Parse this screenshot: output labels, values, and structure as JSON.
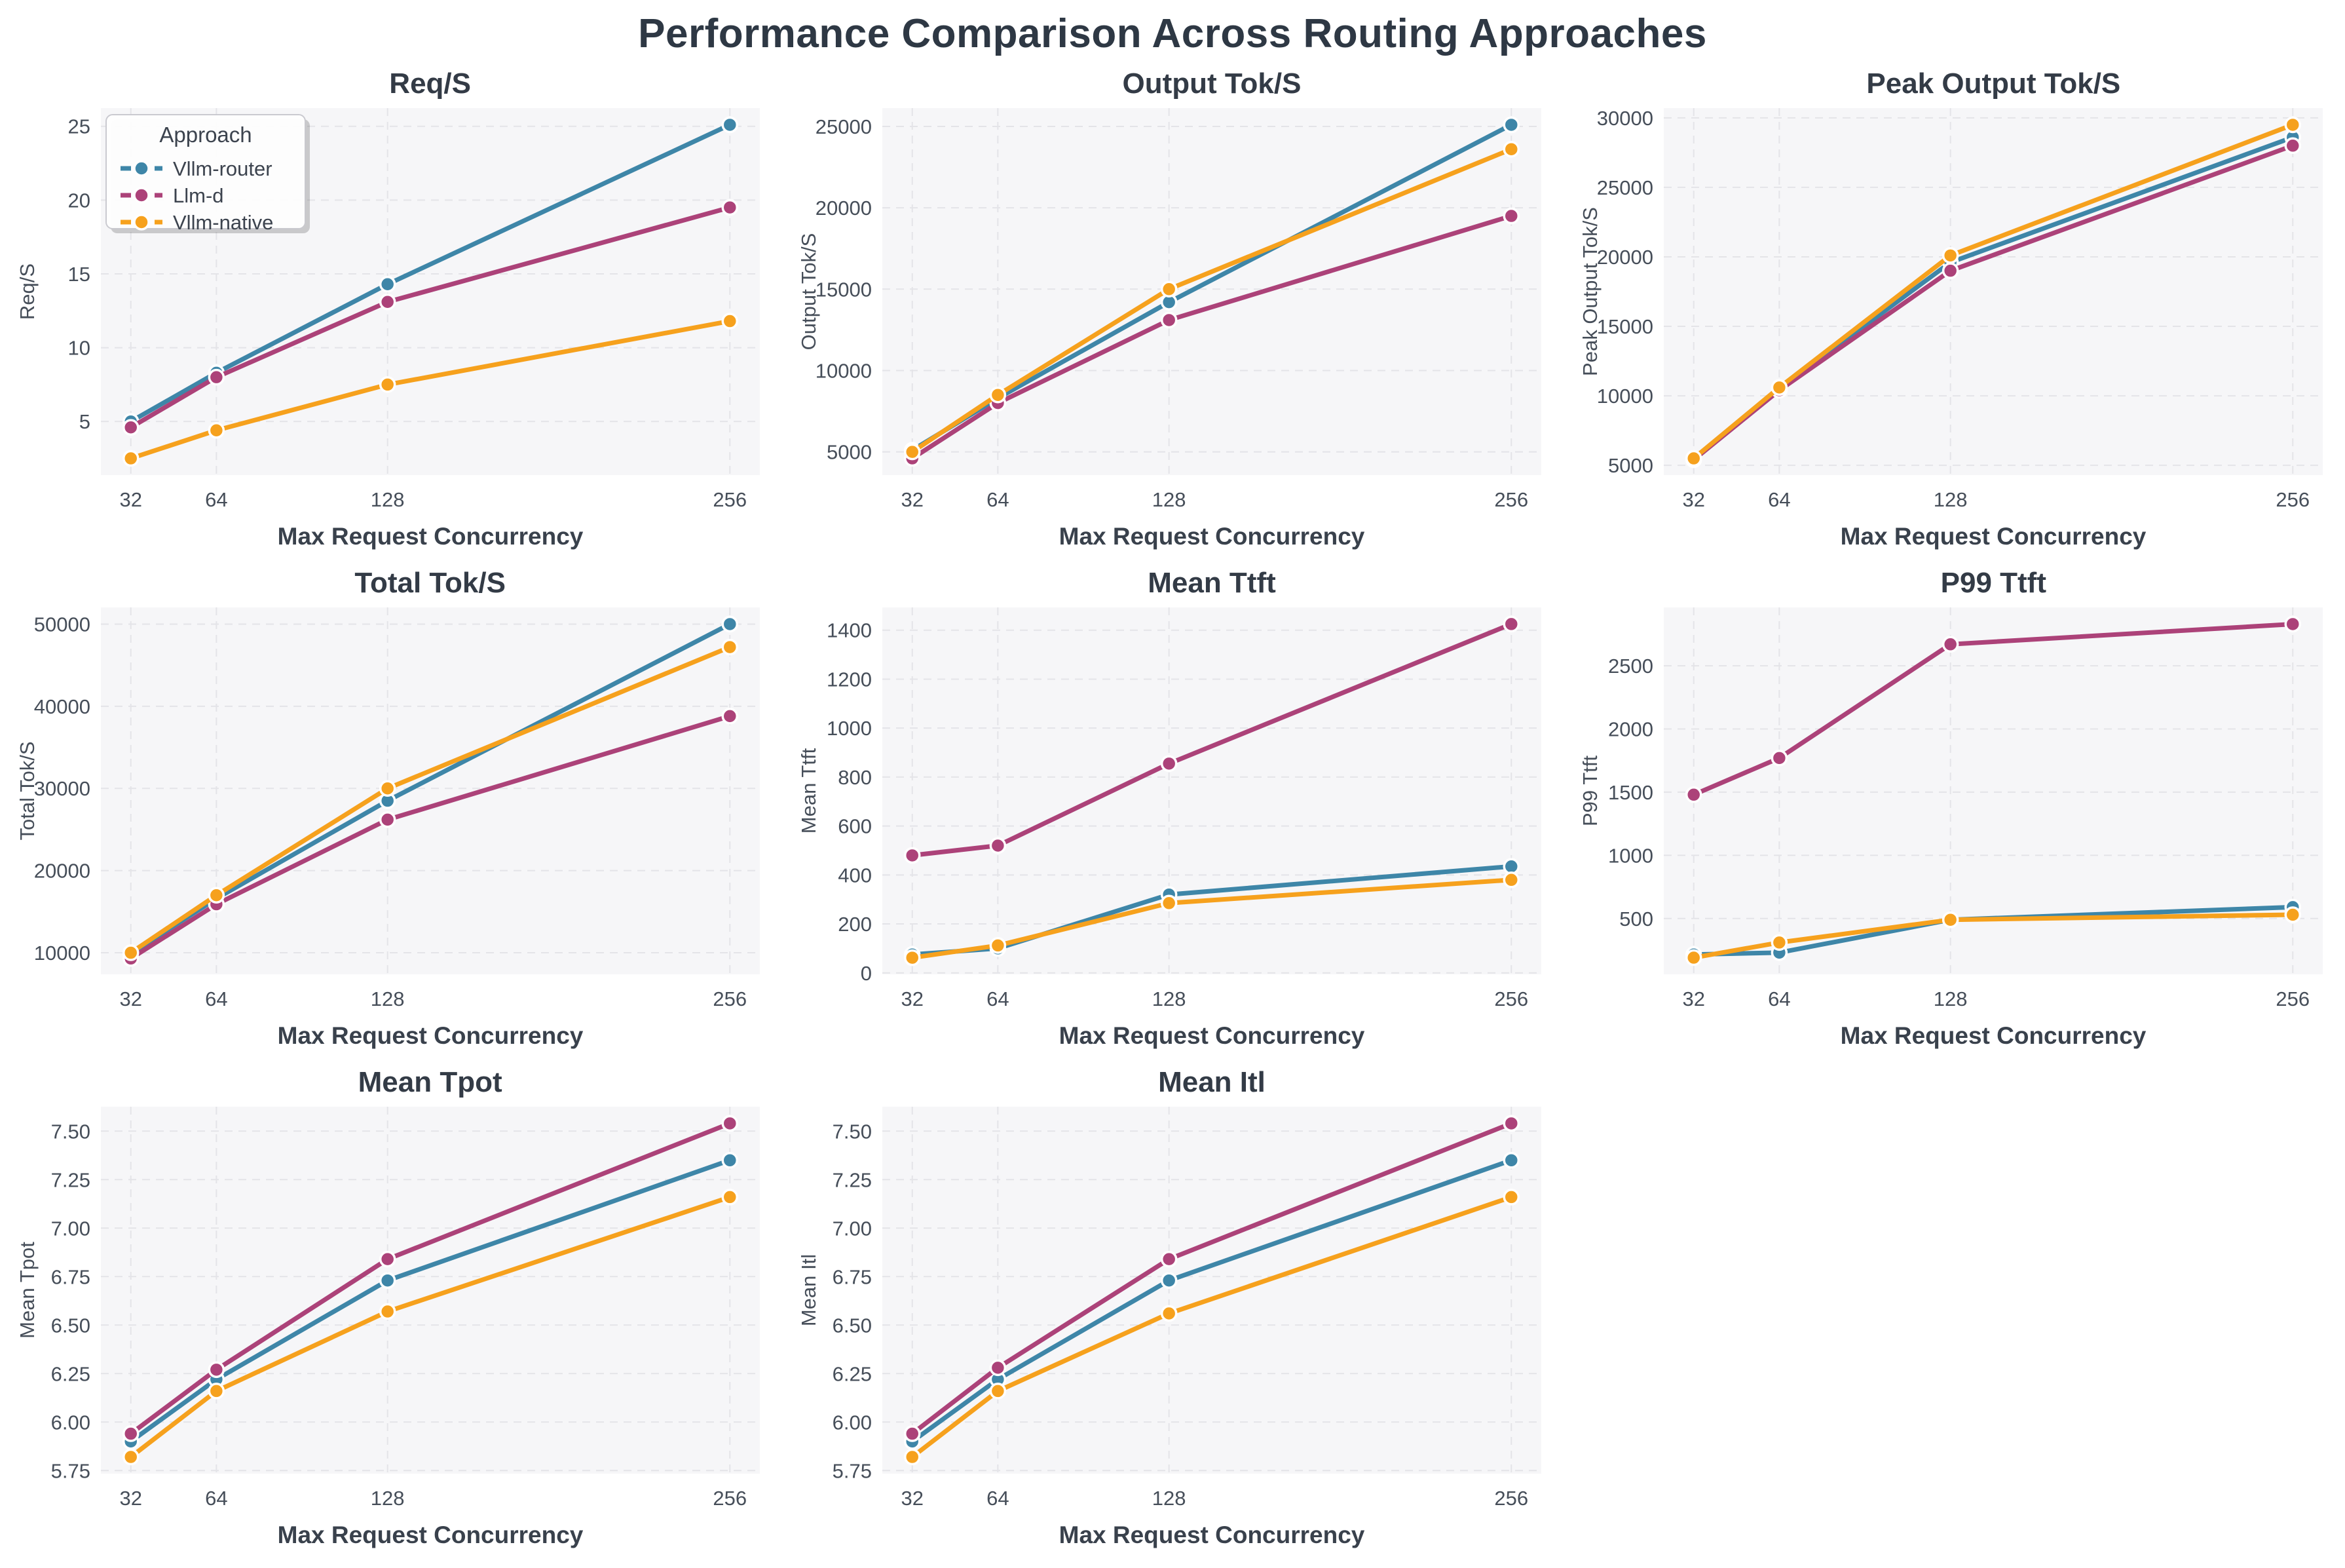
{
  "page_title": "Performance Comparison Across Routing Approaches",
  "legend": {
    "title": "Approach",
    "entries": [
      "Vllm-router",
      "Llm-d",
      "Vllm-native"
    ]
  },
  "series_colors": {
    "Vllm-router": "#3e86a8",
    "Llm-d": "#ac4279",
    "Vllm-native": "#f6a11d"
  },
  "axes": {
    "xlabel": "Max Request Concurrency",
    "x_categories": [
      32,
      64,
      128,
      256
    ],
    "xlim": [
      20.8,
      267.2
    ]
  },
  "chart_data": [
    {
      "type": "line",
      "title": "Req/S",
      "ylabel": "Req/S",
      "yticks": [
        5,
        10,
        15,
        20,
        25
      ],
      "ytick_decimals": 0,
      "ylim": [
        1.37,
        26.23
      ],
      "show_legend": true,
      "series": [
        {
          "name": "Vllm-router",
          "values": [
            5.0,
            8.3,
            14.3,
            25.1
          ]
        },
        {
          "name": "Llm-d",
          "values": [
            4.6,
            8.0,
            13.1,
            19.5
          ]
        },
        {
          "name": "Vllm-native",
          "values": [
            2.5,
            4.4,
            7.5,
            11.8
          ]
        }
      ]
    },
    {
      "type": "line",
      "title": "Output Tok/S",
      "ylabel": "Output Tok/S",
      "yticks": [
        5000,
        10000,
        15000,
        20000,
        25000
      ],
      "ytick_decimals": 0,
      "ylim": [
        3575,
        26125
      ],
      "show_legend": false,
      "series": [
        {
          "name": "Vllm-router",
          "values": [
            5100,
            8300,
            14200,
            25100
          ]
        },
        {
          "name": "Llm-d",
          "values": [
            4600,
            8000,
            13100,
            19500
          ]
        },
        {
          "name": "Vllm-native",
          "values": [
            5000,
            8500,
            15000,
            23600
          ]
        }
      ]
    },
    {
      "type": "line",
      "title": "Peak Output Tok/S",
      "ylabel": "Peak Output Tok/S",
      "yticks": [
        5000,
        10000,
        15000,
        20000,
        25000,
        30000
      ],
      "ytick_decimals": 0,
      "ylim": [
        4300,
        30700
      ],
      "show_legend": false,
      "series": [
        {
          "name": "Vllm-router",
          "values": [
            5500,
            10500,
            19600,
            28600
          ]
        },
        {
          "name": "Llm-d",
          "values": [
            5400,
            10400,
            19000,
            28000
          ]
        },
        {
          "name": "Vllm-native",
          "values": [
            5500,
            10600,
            20100,
            29500
          ]
        }
      ]
    },
    {
      "type": "line",
      "title": "Total Tok/S",
      "ylabel": "Total Tok/S",
      "yticks": [
        10000,
        20000,
        30000,
        40000,
        50000
      ],
      "ytick_decimals": 0,
      "ylim": [
        7370,
        52030
      ],
      "show_legend": false,
      "series": [
        {
          "name": "Vllm-router",
          "values": [
            9900,
            16600,
            28500,
            50000
          ]
        },
        {
          "name": "Llm-d",
          "values": [
            9300,
            15900,
            26200,
            38800
          ]
        },
        {
          "name": "Vllm-native",
          "values": [
            10000,
            17000,
            30000,
            47200
          ]
        }
      ]
    },
    {
      "type": "line",
      "title": "Mean Ttft",
      "ylabel": "Mean Ttft",
      "yticks": [
        0,
        200,
        400,
        600,
        800,
        1000,
        1200,
        1400
      ],
      "ytick_decimals": 0,
      "ylim": [
        -6,
        1493
      ],
      "show_legend": false,
      "series": [
        {
          "name": "Vllm-router",
          "values": [
            75,
            100,
            320,
            435
          ]
        },
        {
          "name": "Llm-d",
          "values": [
            480,
            520,
            855,
            1425
          ]
        },
        {
          "name": "Vllm-native",
          "values": [
            62,
            112,
            285,
            380
          ]
        }
      ]
    },
    {
      "type": "line",
      "title": "P99 Ttft",
      "ylabel": "P99 Ttft",
      "yticks": [
        500,
        1000,
        1500,
        2000,
        2500
      ],
      "ytick_decimals": 0,
      "ylim": [
        58,
        2962
      ],
      "show_legend": false,
      "series": [
        {
          "name": "Vllm-router",
          "values": [
            215,
            230,
            490,
            590
          ]
        },
        {
          "name": "Llm-d",
          "values": [
            1480,
            1770,
            2670,
            2830
          ]
        },
        {
          "name": "Vllm-native",
          "values": [
            190,
            310,
            490,
            530
          ]
        }
      ]
    },
    {
      "type": "line",
      "title": "Mean Tpot",
      "ylabel": "Mean Tpot",
      "yticks": [
        5.75,
        6.0,
        6.25,
        6.5,
        6.75,
        7.0,
        7.25,
        7.5
      ],
      "ytick_decimals": 2,
      "ylim": [
        5.734,
        7.626
      ],
      "show_legend": false,
      "series": [
        {
          "name": "Vllm-router",
          "values": [
            5.9,
            6.22,
            6.73,
            7.35
          ]
        },
        {
          "name": "Llm-d",
          "values": [
            5.94,
            6.27,
            6.84,
            7.54
          ]
        },
        {
          "name": "Vllm-native",
          "values": [
            5.82,
            6.16,
            6.57,
            7.16
          ]
        }
      ]
    },
    {
      "type": "line",
      "title": "Mean Itl",
      "ylabel": "Mean Itl",
      "yticks": [
        5.75,
        6.0,
        6.25,
        6.5,
        6.75,
        7.0,
        7.25,
        7.5
      ],
      "ytick_decimals": 2,
      "ylim": [
        5.734,
        7.626
      ],
      "show_legend": false,
      "series": [
        {
          "name": "Vllm-router",
          "values": [
            5.9,
            6.22,
            6.73,
            7.35
          ]
        },
        {
          "name": "Llm-d",
          "values": [
            5.94,
            6.28,
            6.84,
            7.54
          ]
        },
        {
          "name": "Vllm-native",
          "values": [
            5.82,
            6.16,
            6.56,
            7.16
          ]
        }
      ]
    }
  ]
}
